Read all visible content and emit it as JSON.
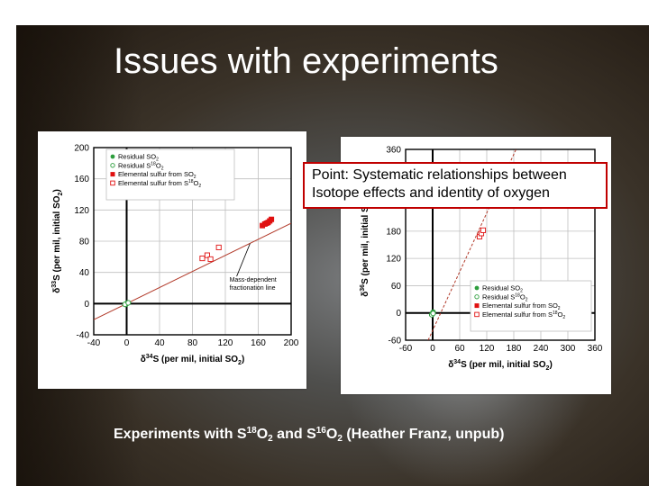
{
  "slide": {
    "title": "Issues with experiments",
    "callout_line1": "Point: Systematic relationships between",
    "callout_line2": "Isotope effects and identity of oxygen",
    "caption": {
      "prefix": "Experiments with S",
      "iso1": "18",
      "mid1": "O",
      "sub1": "2",
      "and": " and S",
      "iso2": "16",
      "mid2": "O",
      "sub2": "2",
      "suffix": " (Heather Franz, unpub)"
    }
  },
  "colors": {
    "series_green": "#2e9e3e",
    "series_red": "#e01010",
    "axis": "#000000",
    "line": "#b23a2a",
    "callout_border": "#c00000"
  },
  "chart_data": [
    {
      "type": "scatter",
      "title": "",
      "xlabel": "δ34S (per mil, initial SO2)",
      "ylabel": "δ33S (per mil, initial SO2)",
      "xlim": [
        -40,
        200
      ],
      "ylim": [
        -40,
        200
      ],
      "xticks": [
        -40,
        0,
        40,
        80,
        120,
        160,
        200
      ],
      "yticks": [
        -40,
        0,
        40,
        80,
        120,
        160,
        200
      ],
      "grid": true,
      "legend": "top-left",
      "annotation": {
        "text": "Mass-dependent fractionation line",
        "x": 125,
        "y": 28
      },
      "reference_line": {
        "x": [
          -40,
          200
        ],
        "y": [
          -20.6,
          103
        ]
      },
      "series": [
        {
          "name": "Residual SO2",
          "marker": "filled-circle",
          "color": "#2e9e3e",
          "x": [
            -1,
            0,
            1
          ],
          "y": [
            -1,
            0,
            1
          ]
        },
        {
          "name": "Residual S18O2",
          "marker": "open-circle",
          "color": "#2e9e3e",
          "x": [
            -2,
            2
          ],
          "y": [
            -1,
            1
          ]
        },
        {
          "name": "Elemental sulfur from SO2",
          "marker": "filled-square",
          "color": "#e01010",
          "x": [
            165,
            168,
            170,
            172,
            174,
            176
          ],
          "y": [
            100,
            102,
            103,
            104,
            106,
            108
          ]
        },
        {
          "name": "Elemental sulfur from S18O2",
          "marker": "open-square",
          "color": "#e01010",
          "x": [
            92,
            98,
            102,
            112
          ],
          "y": [
            58,
            62,
            57,
            72
          ]
        }
      ]
    },
    {
      "type": "scatter",
      "title": "",
      "xlabel": "δ34S (per mil, initial SO2)",
      "ylabel": "δ36S (per mil, initial SO2)",
      "xlim": [
        -60,
        360
      ],
      "ylim": [
        -60,
        360
      ],
      "xticks": [
        -60,
        0,
        60,
        120,
        180,
        240,
        300,
        360
      ],
      "yticks": [
        -60,
        0,
        60,
        120,
        180,
        240,
        300,
        360
      ],
      "grid": true,
      "legend": "bottom-right",
      "reference_line": {
        "x": [
          -10,
          185
        ],
        "y": [
          -60,
          360
        ]
      },
      "series": [
        {
          "name": "Residual SO2",
          "marker": "filled-circle",
          "color": "#2e9e3e",
          "x": [
            -1,
            0,
            1
          ],
          "y": [
            -2,
            0,
            2
          ]
        },
        {
          "name": "Residual S18O2",
          "marker": "open-circle",
          "color": "#2e9e3e",
          "x": [
            -2,
            1
          ],
          "y": [
            -4,
            -1
          ]
        },
        {
          "name": "Elemental sulfur from SO2",
          "marker": "filled-square",
          "color": "#e01010",
          "x": [],
          "y": []
        },
        {
          "name": "Elemental sulfur from S18O2",
          "marker": "open-square",
          "color": "#e01010",
          "x": [
            104,
            108,
            112
          ],
          "y": [
            168,
            175,
            182
          ]
        }
      ]
    }
  ]
}
